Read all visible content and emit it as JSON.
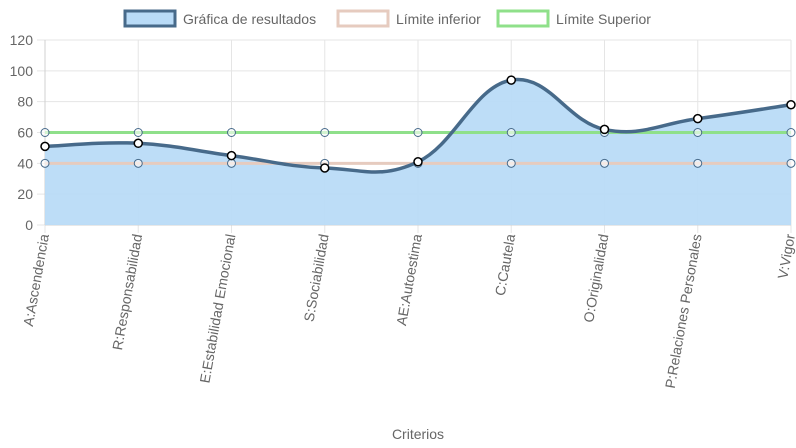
{
  "chart_data": {
    "type": "line",
    "categories": [
      "A:Ascendencia",
      "R:Responsabilidad",
      "E:Estabilidad Emocional",
      "S:Sociabilidad",
      "AE:Autoestima",
      "C:Cautela",
      "O:Originalidad",
      "P:Relaciones Personales",
      "V:Vigor"
    ],
    "series": [
      {
        "name": "Gráfica de resultados",
        "values": [
          51,
          53,
          45,
          37,
          41,
          94,
          62,
          69,
          78
        ],
        "color": "#476a8a",
        "fill": "#b9dbf7",
        "filled": true
      },
      {
        "name": "Límite inferior",
        "values": [
          40,
          40,
          40,
          40,
          40,
          40,
          40,
          40,
          40
        ],
        "color": "#e6cbbf",
        "fill": null,
        "filled": false
      },
      {
        "name": "Límite Superior",
        "values": [
          60,
          60,
          60,
          60,
          60,
          60,
          60,
          60,
          60
        ],
        "color": "#8fe08a",
        "fill": null,
        "filled": false
      }
    ],
    "xlabel": "Criterios",
    "ylabel": "",
    "ylim": [
      0,
      120
    ],
    "yticks": [
      "0",
      "20",
      "40",
      "60",
      "80",
      "100",
      "120"
    ],
    "grid": true,
    "legend_position": "top-center"
  }
}
